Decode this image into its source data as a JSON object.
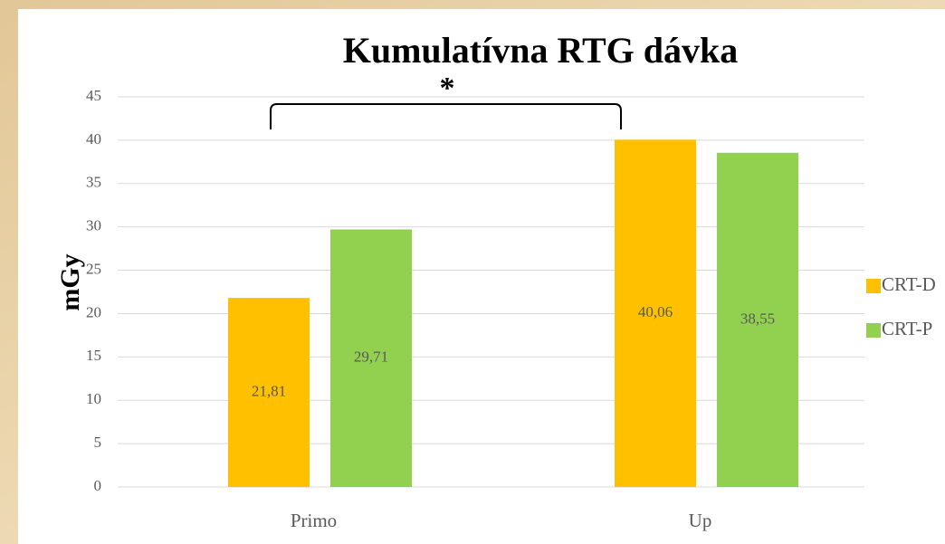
{
  "chart_data": {
    "type": "bar",
    "title": "Kumulatívna RTG dávka",
    "y_label": "mGy",
    "annotation": "*",
    "categories": [
      "Primo",
      "Up"
    ],
    "series": [
      {
        "name": "CRT-D",
        "color": "#ffc000",
        "values": [
          21.81,
          40.06
        ],
        "value_labels": [
          "21,81",
          "40,06"
        ]
      },
      {
        "name": "CRT-P",
        "color": "#92d050",
        "values": [
          29.71,
          38.55
        ],
        "value_labels": [
          "29,71",
          "38,55"
        ]
      }
    ],
    "ylim": [
      0,
      45
    ],
    "yticks": [
      0,
      5,
      10,
      15,
      20,
      25,
      30,
      35,
      40,
      45
    ],
    "grid": true,
    "legend": "right"
  }
}
